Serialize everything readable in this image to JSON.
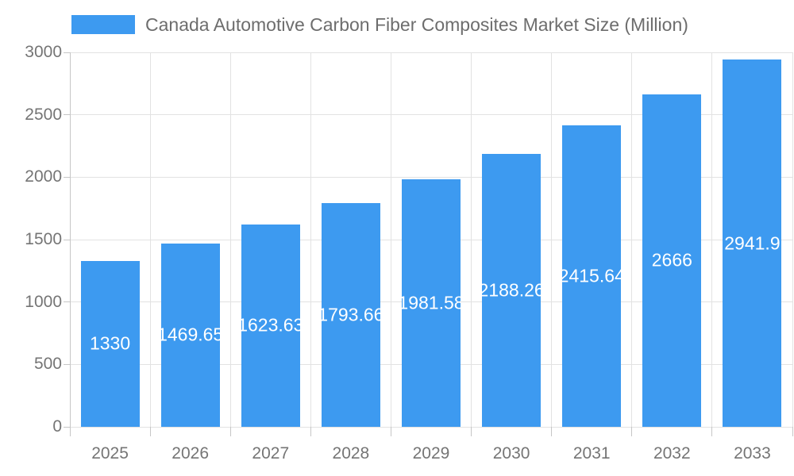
{
  "chart_data": {
    "type": "bar",
    "title": "Canada Automotive Carbon Fiber Composites Market Size (Million)",
    "categories": [
      "2025",
      "2026",
      "2027",
      "2028",
      "2029",
      "2030",
      "2031",
      "2032",
      "2033"
    ],
    "values": [
      1330,
      1469.65,
      1623.63,
      1793.66,
      1981.58,
      2188.26,
      2415.64,
      2666,
      2941.9
    ],
    "bar_labels": [
      "1330",
      "1469.65",
      "1623.63",
      "1793.66",
      "1981.58",
      "2188.26",
      "2415.64",
      "2666",
      "2941.9"
    ],
    "xlabel": "",
    "ylabel": "",
    "ylim": [
      0,
      3000
    ],
    "ytick_step": 500,
    "ytick_labels": [
      "0",
      "500",
      "1000",
      "1500",
      "2000",
      "2500",
      "3000"
    ],
    "grid": true,
    "legend": {
      "position": "top-left",
      "label": "Canada Automotive Carbon Fiber Composites Market Size (Million)"
    },
    "colors": {
      "bar": "#3d9af0",
      "grid": "#e2e2e2",
      "axis": "#c6c6c6",
      "axis_text": "#757575",
      "legend_text": "#6d6d6d",
      "value_text": "#ffffff",
      "background": "#ffffff"
    }
  }
}
